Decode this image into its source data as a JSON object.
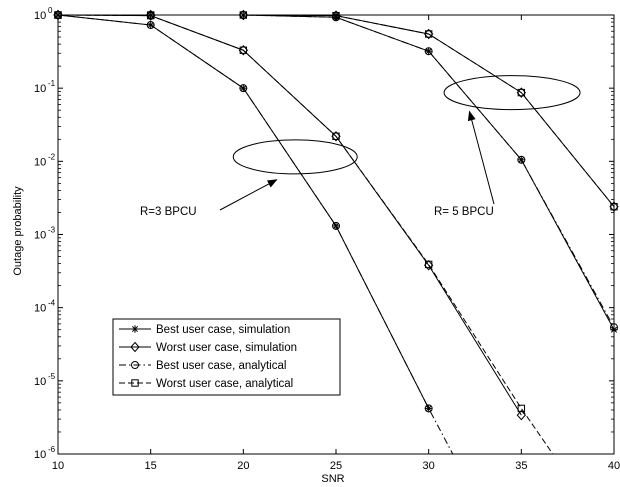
{
  "chart_data": {
    "type": "line",
    "title": "",
    "xlabel": "SNR",
    "ylabel": "Outage probability",
    "xlim": [
      10,
      40
    ],
    "ylim": [
      1e-06,
      1
    ],
    "y_scale": "log",
    "grid": false,
    "x_ticks": [
      10,
      15,
      20,
      25,
      30,
      35,
      40
    ],
    "x_tick_labels": [
      "10",
      "15",
      "20",
      "25",
      "30",
      "35",
      "40"
    ],
    "y_ticks": [
      1,
      0.1,
      0.01,
      0.001,
      0.0001,
      1e-05,
      1e-06
    ],
    "y_tick_labels": [
      {
        "base": "10",
        "exp": "0"
      },
      {
        "base": "10",
        "exp": "-1"
      },
      {
        "base": "10",
        "exp": "-2"
      },
      {
        "base": "10",
        "exp": "-3"
      },
      {
        "base": "10",
        "exp": "-4"
      },
      {
        "base": "10",
        "exp": "-5"
      },
      {
        "base": "10",
        "exp": "-6"
      }
    ],
    "series": [
      {
        "name": "Best user case, simulation",
        "style": "solid",
        "marker": "star",
        "group": "R=3 BPCU",
        "x": [
          10,
          15,
          20,
          25,
          30
        ],
        "y": [
          1,
          0.73,
          0.1,
          0.00131,
          4.2e-06
        ]
      },
      {
        "name": "Worst user case, simulation",
        "style": "solid",
        "marker": "diamond",
        "group": "R=3 BPCU",
        "x": [
          10,
          15,
          20,
          25,
          30,
          35
        ],
        "y": [
          1,
          0.98,
          0.33,
          0.022,
          0.00038,
          3.4e-06
        ]
      },
      {
        "name": "Best user case, analytical",
        "style": "dashdot",
        "marker": "circle",
        "group": "R=3 BPCU",
        "x": [
          10,
          15,
          20,
          25,
          30,
          31.3
        ],
        "y": [
          1,
          0.73,
          0.1,
          0.00131,
          4.2e-06,
          1e-06
        ]
      },
      {
        "name": "Worst user case, analytical",
        "style": "dashed",
        "marker": "square",
        "group": "R=3 BPCU",
        "x": [
          10,
          15,
          20,
          25,
          30,
          35,
          36.7
        ],
        "y": [
          1,
          0.98,
          0.33,
          0.022,
          0.00039,
          4.2e-06,
          1e-06
        ]
      },
      {
        "name": "Best user case, simulation",
        "style": "solid",
        "marker": "star",
        "group": "R= 5 BPCU",
        "x": [
          10,
          15,
          20,
          25,
          30,
          35,
          40
        ],
        "y": [
          1,
          1,
          1,
          0.93,
          0.32,
          0.0105,
          5e-05
        ]
      },
      {
        "name": "Worst user case, simulation",
        "style": "solid",
        "marker": "diamond",
        "group": "R= 5 BPCU",
        "x": [
          10,
          15,
          20,
          25,
          30,
          35,
          40
        ],
        "y": [
          1,
          1,
          1,
          0.98,
          0.55,
          0.087,
          0.0024
        ]
      },
      {
        "name": "Best user case, analytical",
        "style": "dashdot",
        "marker": "circle",
        "group": "R= 5 BPCU",
        "x": [
          10,
          15,
          20,
          25,
          30,
          35,
          40
        ],
        "y": [
          1,
          1,
          1,
          0.93,
          0.32,
          0.0105,
          5.4e-05
        ]
      },
      {
        "name": "Worst user case, analytical",
        "style": "dashed",
        "marker": "square",
        "group": "R= 5 BPCU",
        "x": [
          10,
          15,
          20,
          25,
          30,
          35,
          40
        ],
        "y": [
          1,
          1,
          1,
          0.98,
          0.55,
          0.087,
          0.0024
        ]
      }
    ],
    "legend": {
      "placement": "lower-left",
      "entries": [
        {
          "label": "Best user case, simulation",
          "style": "solid",
          "marker": "star"
        },
        {
          "label": "Worst user case, simulation",
          "style": "solid",
          "marker": "diamond"
        },
        {
          "label": "Best user case, analytical",
          "style": "dashdot",
          "marker": "circle"
        },
        {
          "label": "Worst user case, analytical",
          "style": "dashed",
          "marker": "square"
        }
      ]
    },
    "annotations": [
      {
        "text": "R=3 BPCU",
        "ellipse_center": [
          22.8,
          0.0115
        ],
        "arrow_to": [
          21.8,
          0.0056
        ]
      },
      {
        "text": "R= 5 BPCU",
        "ellipse_center": [
          34.5,
          0.087
        ],
        "arrow_to": [
          32.2,
          0.048
        ]
      }
    ]
  }
}
